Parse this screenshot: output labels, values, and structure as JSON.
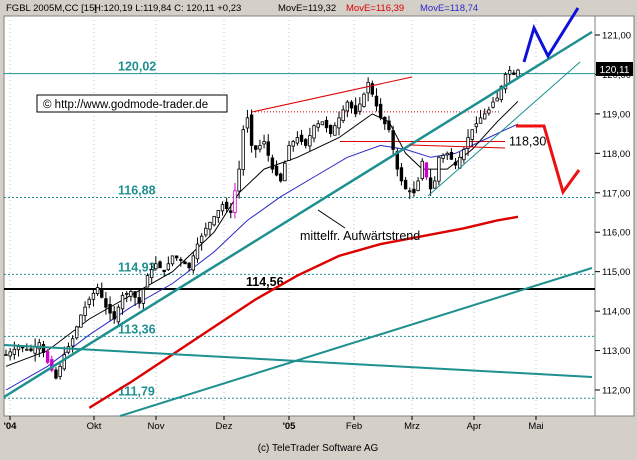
{
  "header": {
    "symbol": "FGBL 2005M,CC [15]",
    "ohlc": "H:120,19 L:119,84 C: 120,11 +0,23",
    "mave1_label": "MovE=119,32",
    "mave2_label": "MovE=116,39",
    "mave3_label": "MovE=118,74"
  },
  "watermark": "© http://www.godmode-trader.de",
  "footer": "(c) TeleTrader Software AG",
  "current_price": "120,11",
  "colors": {
    "background": "#ffffff",
    "frame": "#d4d0c8",
    "trendline": "#1f9090",
    "ma_red": "#dd0000",
    "ma_blue": "#2828c8",
    "projection_blue": "#1010dd",
    "projection_red": "#ee1010"
  },
  "chart_data": {
    "type": "candlestick",
    "y_axis_labels": [
      "112,00",
      "113,00",
      "114,00",
      "115,00",
      "116,00",
      "117,00",
      "118,00",
      "119,00",
      "120,00",
      "121,00"
    ],
    "y_axis_values": [
      112,
      113,
      114,
      115,
      116,
      117,
      118,
      119,
      120,
      121
    ],
    "ylim": [
      111.55,
      121.65
    ],
    "x_axis_labels": [
      "'04",
      "Okt",
      "Nov",
      "Dez",
      "'05",
      "Feb",
      "Mrz",
      "Apr",
      "Mai"
    ],
    "levels": [
      {
        "label": "120,02",
        "value": 120.02
      },
      {
        "label": "116,88",
        "value": 116.88
      },
      {
        "label": "114,93",
        "value": 114.93
      },
      {
        "label": "114,56",
        "value": 114.56
      },
      {
        "label": "113,36",
        "value": 113.36
      },
      {
        "label": "111,79",
        "value": 111.79
      }
    ],
    "annotations": [
      {
        "text": "118,30",
        "value": 118.3
      },
      {
        "text": "mittelfr. Aufwärtstrend"
      }
    ],
    "close_path": [
      [
        0,
        112.9
      ],
      [
        3,
        113.1
      ],
      [
        6,
        113.0
      ],
      [
        8,
        113.2
      ],
      [
        10,
        112.7
      ],
      [
        12,
        112.3
      ],
      [
        14,
        112.9
      ],
      [
        16,
        113.3
      ],
      [
        18,
        113.9
      ],
      [
        20,
        114.3
      ],
      [
        22,
        114.6
      ],
      [
        24,
        114.1
      ],
      [
        26,
        113.8
      ],
      [
        28,
        114.4
      ],
      [
        30,
        114.5
      ],
      [
        32,
        114.2
      ],
      [
        34,
        114.9
      ],
      [
        36,
        115.2
      ],
      [
        38,
        115.0
      ],
      [
        40,
        115.4
      ],
      [
        42,
        115.3
      ],
      [
        44,
        115.1
      ],
      [
        46,
        115.7
      ],
      [
        48,
        116.1
      ],
      [
        50,
        116.4
      ],
      [
        52,
        116.7
      ],
      [
        54,
        116.5
      ],
      [
        56,
        117.6
      ],
      [
        57,
        118.6
      ],
      [
        58,
        118.9
      ],
      [
        59,
        118.2
      ],
      [
        60,
        118.1
      ],
      [
        62,
        118.3
      ],
      [
        64,
        117.6
      ],
      [
        66,
        117.3
      ],
      [
        68,
        118.2
      ],
      [
        70,
        118.4
      ],
      [
        72,
        118.2
      ],
      [
        74,
        118.7
      ],
      [
        76,
        118.8
      ],
      [
        78,
        118.5
      ],
      [
        80,
        118.9
      ],
      [
        82,
        119.3
      ],
      [
        84,
        119.0
      ],
      [
        86,
        119.5
      ],
      [
        87,
        119.8
      ],
      [
        88,
        119.5
      ],
      [
        90,
        118.9
      ],
      [
        92,
        118.6
      ],
      [
        94,
        117.6
      ],
      [
        95,
        117.3
      ],
      [
        96,
        117.1
      ],
      [
        98,
        117.0
      ],
      [
        99,
        117.3
      ],
      [
        100,
        117.8
      ],
      [
        101,
        117.4
      ],
      [
        102,
        117.1
      ],
      [
        103,
        117.3
      ],
      [
        104,
        117.9
      ],
      [
        106,
        118.0
      ],
      [
        108,
        117.7
      ],
      [
        110,
        118.1
      ],
      [
        111,
        118.4
      ],
      [
        112,
        118.6
      ],
      [
        114,
        118.9
      ],
      [
        116,
        119.1
      ],
      [
        117,
        119.3
      ],
      [
        118,
        119.4
      ],
      [
        119,
        119.7
      ],
      [
        120,
        120.0
      ],
      [
        121,
        120.1
      ],
      [
        122,
        120.0
      ],
      [
        123,
        120.11
      ]
    ]
  }
}
